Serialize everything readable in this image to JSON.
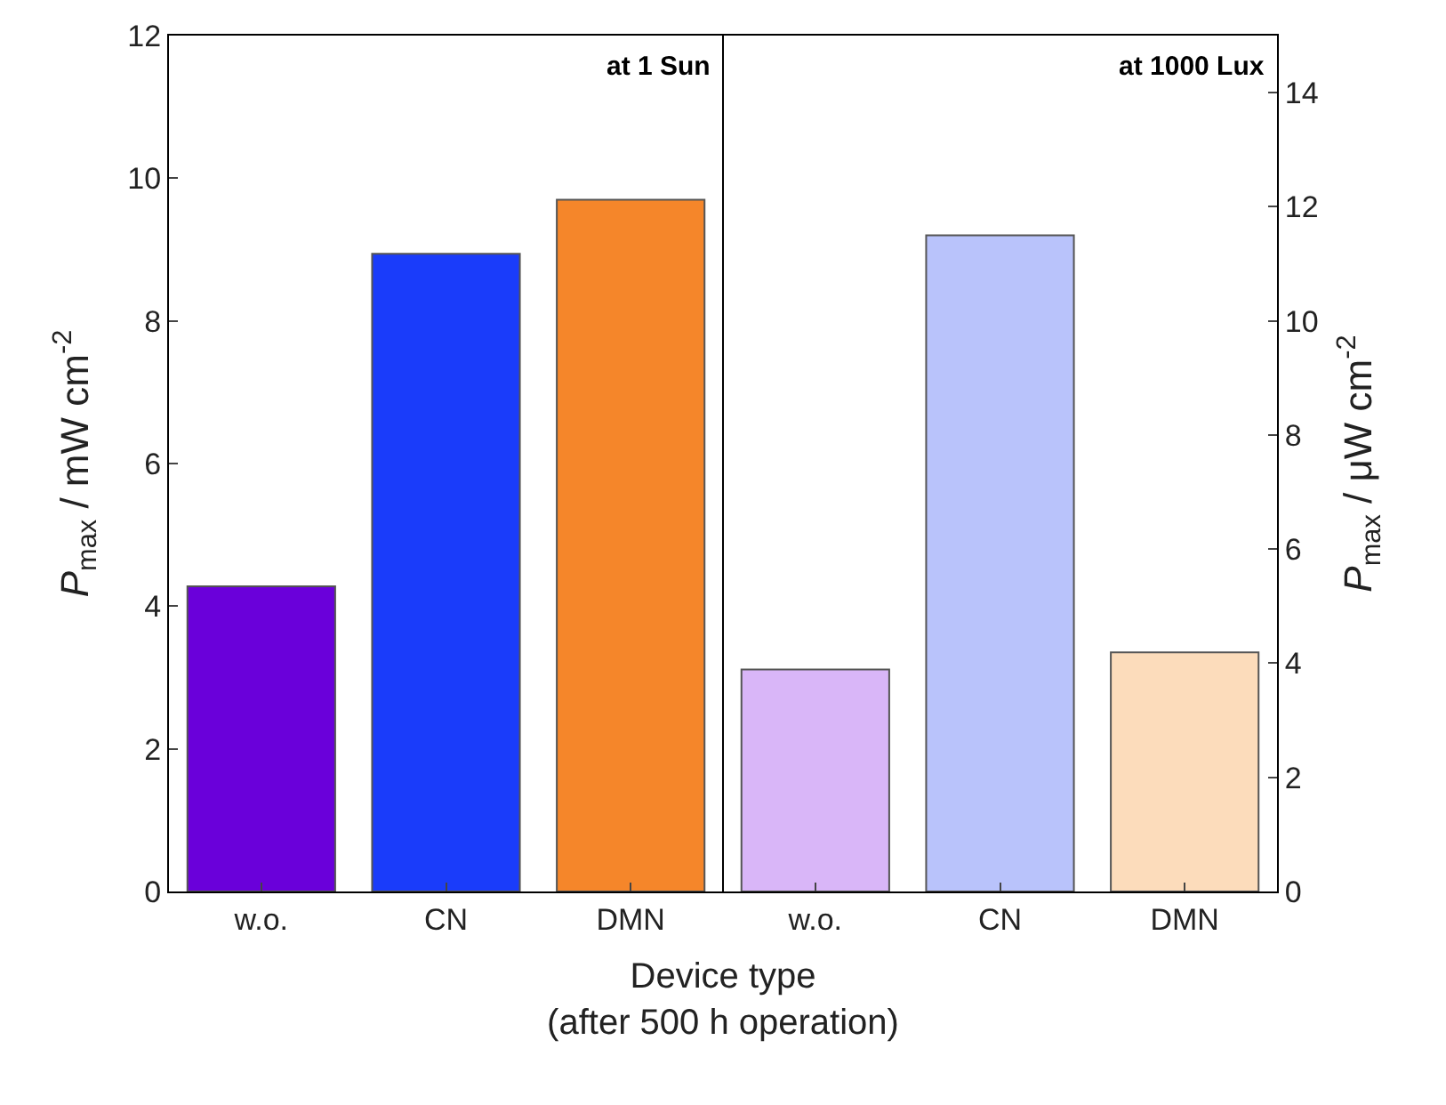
{
  "chart_data": {
    "type": "bar",
    "categories": [
      "w.o.",
      "CN",
      "DMN",
      "w.o.",
      "CN",
      "DMN"
    ],
    "series": [
      {
        "colors": [
          "#6a00da",
          "#1a3cfa",
          "#f5862a",
          null,
          null,
          null
        ],
        "values": [
          4.28,
          8.94,
          9.7,
          null,
          null,
          null
        ]
      },
      {
        "colors": [
          null,
          null,
          null,
          "#d9b6f8",
          "#b9c3fb",
          "#fcdcbb"
        ],
        "values": [
          null,
          null,
          null,
          3.89,
          11.5,
          4.19
        ],
        "axis": "y2"
      }
    ],
    "xlabel": "Device type\n(after 500 h operation)",
    "ylabel": "P$_{max}$ / mW cm$^{-2}$",
    "y2label": "P$_{max}$ / μW cm$^{-2}$",
    "ylim": [
      0,
      12
    ],
    "yticks": [
      0,
      2,
      4,
      6,
      8,
      10,
      12
    ],
    "y2lim": [
      0,
      15
    ],
    "y2ticks": [
      0,
      2,
      4,
      6,
      8,
      10,
      12,
      14
    ],
    "annotations": [
      "at 1 Sun",
      "at 1000 Lux"
    ],
    "legend": false
  }
}
